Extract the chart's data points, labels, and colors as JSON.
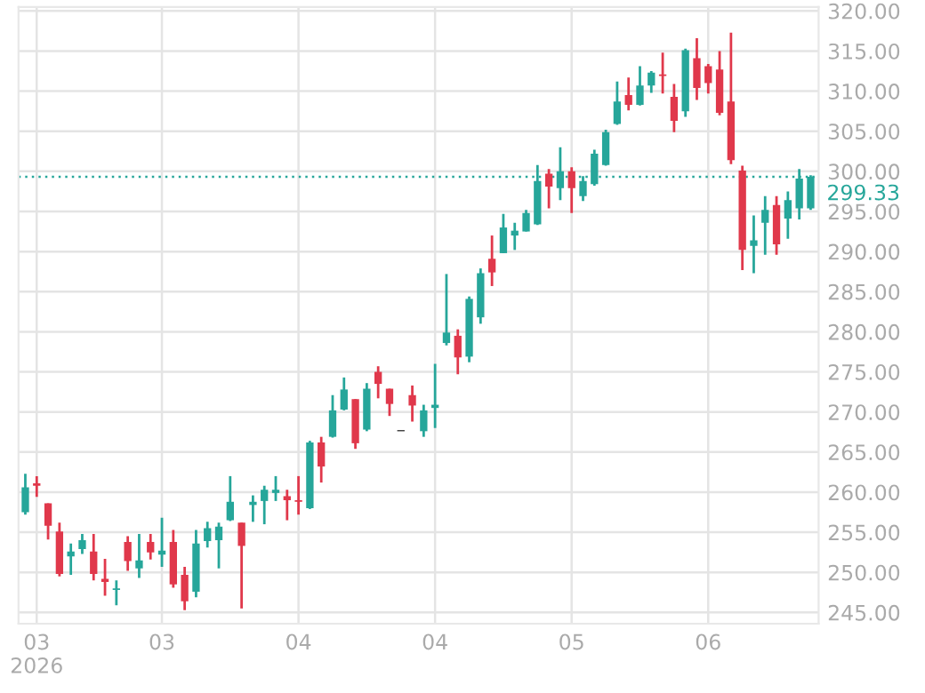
{
  "chart_data": {
    "type": "candlestick",
    "categories": [
      null,
      "03\n2026",
      null,
      null,
      null,
      null,
      null,
      null,
      null,
      null,
      null,
      null,
      "03",
      null,
      null,
      null,
      null,
      null,
      null,
      null,
      null,
      null,
      null,
      null,
      "04",
      null,
      null,
      null,
      null,
      null,
      null,
      null,
      null,
      null,
      null,
      null,
      "04",
      null,
      null,
      null,
      null,
      null,
      null,
      null,
      null,
      null,
      null,
      null,
      "05",
      null,
      null,
      null,
      null,
      null,
      null,
      null,
      null,
      null,
      null,
      null,
      "06",
      null,
      null,
      null,
      null,
      null,
      null,
      null,
      null,
      null
    ],
    "ohlc": [
      [
        257.5,
        262.3,
        257.2,
        260.6
      ],
      [
        261.1,
        262.0,
        259.4,
        260.8
      ],
      [
        258.6,
        258.6,
        254.1,
        255.8
      ],
      [
        255.1,
        256.2,
        249.5,
        249.8
      ],
      [
        252.0,
        253.6,
        249.7,
        252.6
      ],
      [
        252.9,
        254.8,
        252.3,
        254.0
      ],
      [
        252.6,
        254.8,
        249.0,
        249.8
      ],
      [
        249.2,
        251.7,
        247.1,
        248.8
      ],
      [
        247.8,
        249.0,
        245.9,
        248.0
      ],
      [
        253.8,
        254.5,
        250.2,
        251.4
      ],
      [
        250.5,
        254.8,
        249.3,
        251.5
      ],
      [
        253.8,
        254.8,
        251.6,
        252.5
      ],
      [
        252.2,
        256.8,
        250.7,
        252.7
      ],
      [
        253.8,
        255.3,
        248.1,
        248.5
      ],
      [
        249.7,
        250.7,
        245.3,
        246.4
      ],
      [
        247.6,
        255.3,
        246.9,
        253.6
      ],
      [
        253.9,
        256.3,
        253.1,
        255.5
      ],
      [
        254.0,
        256.2,
        250.5,
        255.7
      ],
      [
        256.5,
        262.0,
        256.4,
        258.8
      ],
      [
        256.2,
        256.2,
        245.5,
        253.3
      ],
      [
        258.4,
        259.6,
        256.3,
        258.8
      ],
      [
        258.9,
        260.8,
        256.0,
        260.3
      ],
      [
        259.9,
        262.0,
        258.9,
        260.3
      ],
      [
        259.5,
        260.3,
        256.5,
        259.0
      ],
      [
        259.0,
        262.0,
        257.2,
        258.8
      ],
      [
        258.0,
        266.4,
        257.9,
        266.2
      ],
      [
        266.2,
        266.9,
        261.2,
        263.2
      ],
      [
        266.9,
        272.1,
        266.8,
        270.2
      ],
      [
        270.3,
        274.3,
        270.2,
        272.8
      ],
      [
        271.6,
        271.6,
        265.4,
        266.1
      ],
      [
        267.8,
        273.6,
        267.6,
        272.9
      ],
      [
        275.0,
        275.7,
        271.7,
        273.5
      ],
      [
        272.9,
        272.9,
        269.5,
        271.0
      ],
      [
        267.6,
        267.6,
        267.6,
        267.6
      ],
      [
        272.1,
        273.3,
        268.8,
        270.8
      ],
      [
        267.6,
        270.9,
        266.9,
        270.2
      ],
      [
        270.5,
        276.0,
        268.0,
        270.9
      ],
      [
        278.6,
        287.2,
        278.3,
        279.9
      ],
      [
        279.5,
        280.3,
        274.7,
        276.8
      ],
      [
        276.9,
        284.4,
        276.2,
        284.1
      ],
      [
        281.8,
        287.9,
        281.0,
        287.3
      ],
      [
        289.1,
        292.0,
        285.7,
        287.4
      ],
      [
        289.8,
        294.7,
        289.8,
        293.0
      ],
      [
        292.0,
        293.6,
        290.2,
        292.6
      ],
      [
        292.5,
        295.2,
        292.5,
        294.8
      ],
      [
        293.4,
        300.8,
        293.3,
        298.8
      ],
      [
        299.7,
        300.3,
        295.4,
        298.1
      ],
      [
        297.9,
        303.0,
        296.4,
        300.0
      ],
      [
        300.0,
        300.5,
        294.8,
        297.9
      ],
      [
        296.9,
        299.4,
        296.3,
        298.8
      ],
      [
        298.4,
        302.7,
        298.2,
        302.2
      ],
      [
        300.8,
        305.2,
        300.7,
        304.9
      ],
      [
        305.9,
        311.2,
        305.8,
        308.7
      ],
      [
        309.5,
        311.7,
        307.6,
        308.3
      ],
      [
        308.3,
        313.1,
        308.2,
        310.7
      ],
      [
        310.7,
        312.5,
        309.8,
        312.3
      ],
      [
        312.1,
        314.8,
        309.7,
        311.9
      ],
      [
        309.3,
        310.9,
        304.9,
        306.3
      ],
      [
        307.5,
        315.3,
        306.8,
        315.1
      ],
      [
        314.1,
        316.6,
        308.9,
        310.4
      ],
      [
        313.1,
        313.4,
        309.7,
        311.0
      ],
      [
        312.7,
        315.0,
        307.0,
        307.3
      ],
      [
        308.7,
        317.3,
        300.9,
        301.4
      ],
      [
        300.1,
        300.7,
        287.7,
        290.2
      ],
      [
        290.7,
        294.5,
        287.3,
        291.4
      ],
      [
        293.6,
        296.9,
        289.6,
        295.2
      ],
      [
        295.8,
        296.9,
        289.6,
        290.9
      ],
      [
        294.1,
        297.5,
        291.6,
        296.4
      ],
      [
        295.4,
        300.3,
        294.0,
        299.1
      ],
      [
        295.4,
        299.5,
        295.2,
        299.33
      ]
    ],
    "colors": [
      "#26a69a",
      "#e0384b",
      "#e0384b",
      "#e0384b",
      "#26a69a",
      "#26a69a",
      "#e0384b",
      "#e0384b",
      "#26a69a",
      "#e0384b",
      "#26a69a",
      "#e0384b",
      "#26a69a",
      "#e0384b",
      "#e0384b",
      "#26a69a",
      "#26a69a",
      "#26a69a",
      "#26a69a",
      "#e0384b",
      "#26a69a",
      "#26a69a",
      "#26a69a",
      "#e0384b",
      "#e0384b",
      "#26a69a",
      "#e0384b",
      "#26a69a",
      "#26a69a",
      "#e0384b",
      "#26a69a",
      "#e0384b",
      "#e0384b",
      "#000000",
      "#e0384b",
      "#26a69a",
      "#26a69a",
      "#26a69a",
      "#e0384b",
      "#26a69a",
      "#26a69a",
      "#e0384b",
      "#26a69a",
      "#26a69a",
      "#26a69a",
      "#26a69a",
      "#e0384b",
      "#26a69a",
      "#e0384b",
      "#26a69a",
      "#26a69a",
      "#26a69a",
      "#26a69a",
      "#e0384b",
      "#26a69a",
      "#26a69a",
      "#e0384b",
      "#e0384b",
      "#26a69a",
      "#e0384b",
      "#e0384b",
      "#e0384b",
      "#e0384b",
      "#e0384b",
      "#26a69a",
      "#26a69a",
      "#e0384b",
      "#26a69a",
      "#26a69a",
      "#26a69a"
    ],
    "ylim": [
      243.6,
      320.5
    ],
    "yticks": [
      {
        "value": 245,
        "label": "245.00"
      },
      {
        "value": 250,
        "label": "250.00"
      },
      {
        "value": 255,
        "label": "255.00"
      },
      {
        "value": 260,
        "label": "260.00"
      },
      {
        "value": 265,
        "label": "265.00"
      },
      {
        "value": 270,
        "label": "270.00"
      },
      {
        "value": 275,
        "label": "275.00"
      },
      {
        "value": 280,
        "label": "280.00"
      },
      {
        "value": 285,
        "label": "285.00"
      },
      {
        "value": 290,
        "label": "290.00"
      },
      {
        "value": 295,
        "label": "295.00"
      },
      {
        "value": 300,
        "label": "300.00"
      },
      {
        "value": 305,
        "label": "305.00"
      },
      {
        "value": 310,
        "label": "310.00"
      },
      {
        "value": 315,
        "label": "315.00"
      },
      {
        "value": 320,
        "label": "320.00"
      }
    ],
    "ref_lines": [
      {
        "axis": "y",
        "value": 299.33,
        "label": "299.33",
        "color": "#26a69a",
        "line_style": "dotted"
      }
    ],
    "grid": true
  }
}
